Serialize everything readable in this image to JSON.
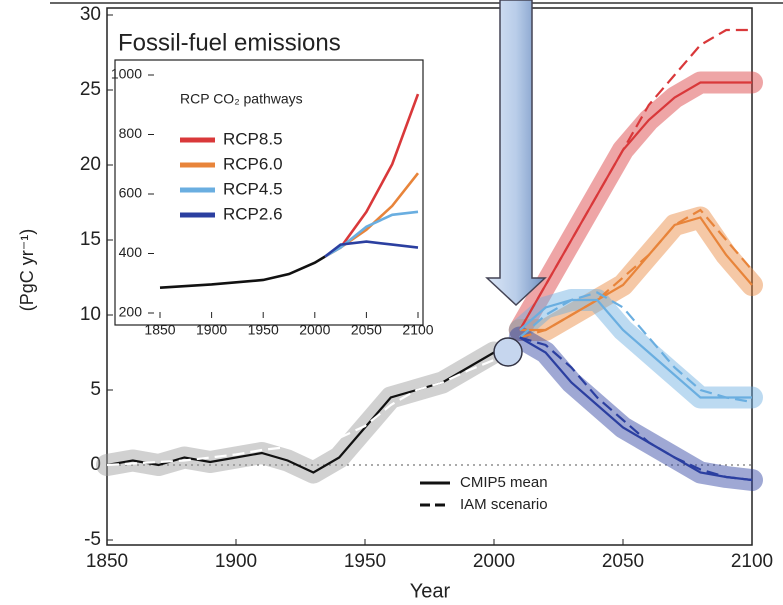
{
  "chart_data": [
    {
      "type": "line",
      "title": "Fossil-fuel emissions",
      "xlabel": "Year",
      "ylabel": "(PgC yr⁻¹)",
      "xlim": [
        1850,
        2100
      ],
      "xticks": [
        1850,
        1900,
        1950,
        2000,
        2050,
        2100
      ],
      "ylim": [
        -5,
        30
      ],
      "yticks": [
        -5,
        0,
        5,
        10,
        15,
        20,
        25,
        30
      ],
      "legend": [
        {
          "label": "CMIP5 mean",
          "dashed": false
        },
        {
          "label": "IAM scenario",
          "dashed": true
        }
      ],
      "series": [
        {
          "color": "#111111",
          "dashed": false,
          "x": [
            1850,
            1860,
            1870,
            1880,
            1890,
            1900,
            1910,
            1920,
            1930,
            1940,
            1950,
            1960,
            1970,
            1980,
            1990,
            2000
          ],
          "values": [
            0,
            0.3,
            0,
            0.5,
            0.2,
            0.5,
            0.8,
            0.3,
            -0.5,
            0.5,
            2.5,
            4.5,
            5,
            5.5,
            6.5,
            7.5
          ]
        },
        {
          "color": "#ffffff",
          "dashed": true,
          "x": [
            1850,
            1860,
            1870,
            1880,
            1890,
            1900,
            1910,
            1920,
            1930,
            1940,
            1950,
            1960,
            1970,
            1980,
            1990,
            2000
          ],
          "values": [
            0,
            0.1,
            0.2,
            0.3,
            0.5,
            0.7,
            1,
            1.2,
            1.5,
            1.8,
            2.6,
            4,
            5,
            5.5,
            6.3,
            7
          ]
        },
        {
          "color": "#d9383a",
          "dashed": false,
          "x": [
            2010,
            2020,
            2030,
            2040,
            2050,
            2060,
            2070,
            2080,
            2090,
            2100
          ],
          "values": [
            9,
            12,
            15,
            18,
            21,
            23,
            24.5,
            25.5,
            25.5,
            25.5
          ]
        },
        {
          "color": "#d9383a",
          "dashed": true,
          "x": [
            2010,
            2020,
            2030,
            2040,
            2050,
            2060,
            2070,
            2080,
            2090,
            2100
          ],
          "values": [
            9,
            12,
            15,
            18,
            21,
            24,
            26,
            28,
            29,
            29
          ]
        },
        {
          "color": "#e8843a",
          "dashed": false,
          "x": [
            2010,
            2020,
            2030,
            2040,
            2050,
            2060,
            2070,
            2080,
            2090,
            2100
          ],
          "values": [
            9,
            9,
            10,
            11,
            12,
            14,
            16,
            16.5,
            14,
            12
          ]
        },
        {
          "color": "#e8843a",
          "dashed": true,
          "x": [
            2010,
            2020,
            2030,
            2040,
            2050,
            2060,
            2070,
            2080,
            2090,
            2100
          ],
          "values": [
            8.5,
            9,
            10,
            11,
            12.5,
            14,
            16,
            17,
            15,
            13
          ]
        },
        {
          "color": "#6aaee0",
          "dashed": false,
          "x": [
            2010,
            2020,
            2030,
            2040,
            2050,
            2060,
            2070,
            2080,
            2090,
            2100
          ],
          "values": [
            9,
            10.5,
            11,
            11,
            9,
            7.5,
            6,
            4.5,
            4.5,
            4.5
          ]
        },
        {
          "color": "#6aaee0",
          "dashed": true,
          "x": [
            2010,
            2020,
            2030,
            2040,
            2050,
            2060,
            2070,
            2080,
            2090,
            2100
          ],
          "values": [
            8.5,
            10,
            11,
            11.5,
            10.5,
            8.5,
            6.5,
            5,
            4.5,
            4.2
          ]
        },
        {
          "color": "#2b3fa0",
          "dashed": false,
          "x": [
            2010,
            2020,
            2030,
            2040,
            2050,
            2060,
            2070,
            2080,
            2090,
            2100
          ],
          "values": [
            8.5,
            7.5,
            5.5,
            4,
            2.5,
            1.5,
            0.5,
            -0.5,
            -0.8,
            -1
          ]
        },
        {
          "color": "#2b3fa0",
          "dashed": true,
          "x": [
            2010,
            2020,
            2030,
            2040,
            2050,
            2060,
            2070,
            2080,
            2090,
            2100
          ],
          "values": [
            8.5,
            8,
            6.5,
            4.5,
            3,
            1.5,
            0.5,
            -0.3,
            -0.8,
            -1
          ]
        }
      ]
    },
    {
      "type": "line",
      "title": "RCP CO₂ pathways",
      "xlim": [
        1850,
        2100
      ],
      "xticks": [
        1850,
        1900,
        1950,
        2000,
        2050,
        2100
      ],
      "ylim": [
        200,
        1000
      ],
      "yticks": [
        200,
        400,
        600,
        800,
        1000
      ],
      "series": [
        {
          "color": "#111111",
          "x": [
            1850,
            1900,
            1950,
            1975,
            2000,
            2010
          ],
          "values": [
            285,
            296,
            311,
            331,
            369,
            390
          ]
        },
        {
          "name": "RCP8.5",
          "color": "#d9383a",
          "x": [
            2010,
            2025,
            2050,
            2075,
            2100
          ],
          "values": [
            390,
            420,
            540,
            700,
            936
          ]
        },
        {
          "name": "RCP6.0",
          "color": "#e8843a",
          "x": [
            2010,
            2025,
            2050,
            2075,
            2100
          ],
          "values": [
            390,
            420,
            480,
            560,
            670
          ]
        },
        {
          "name": "RCP4.5",
          "color": "#6aaee0",
          "x": [
            2010,
            2025,
            2050,
            2075,
            2100
          ],
          "values": [
            390,
            420,
            490,
            530,
            540
          ]
        },
        {
          "name": "RCP2.6",
          "color": "#2b3fa0",
          "x": [
            2010,
            2025,
            2050,
            2075,
            2100
          ],
          "values": [
            390,
            430,
            440,
            430,
            420
          ]
        }
      ]
    }
  ]
}
